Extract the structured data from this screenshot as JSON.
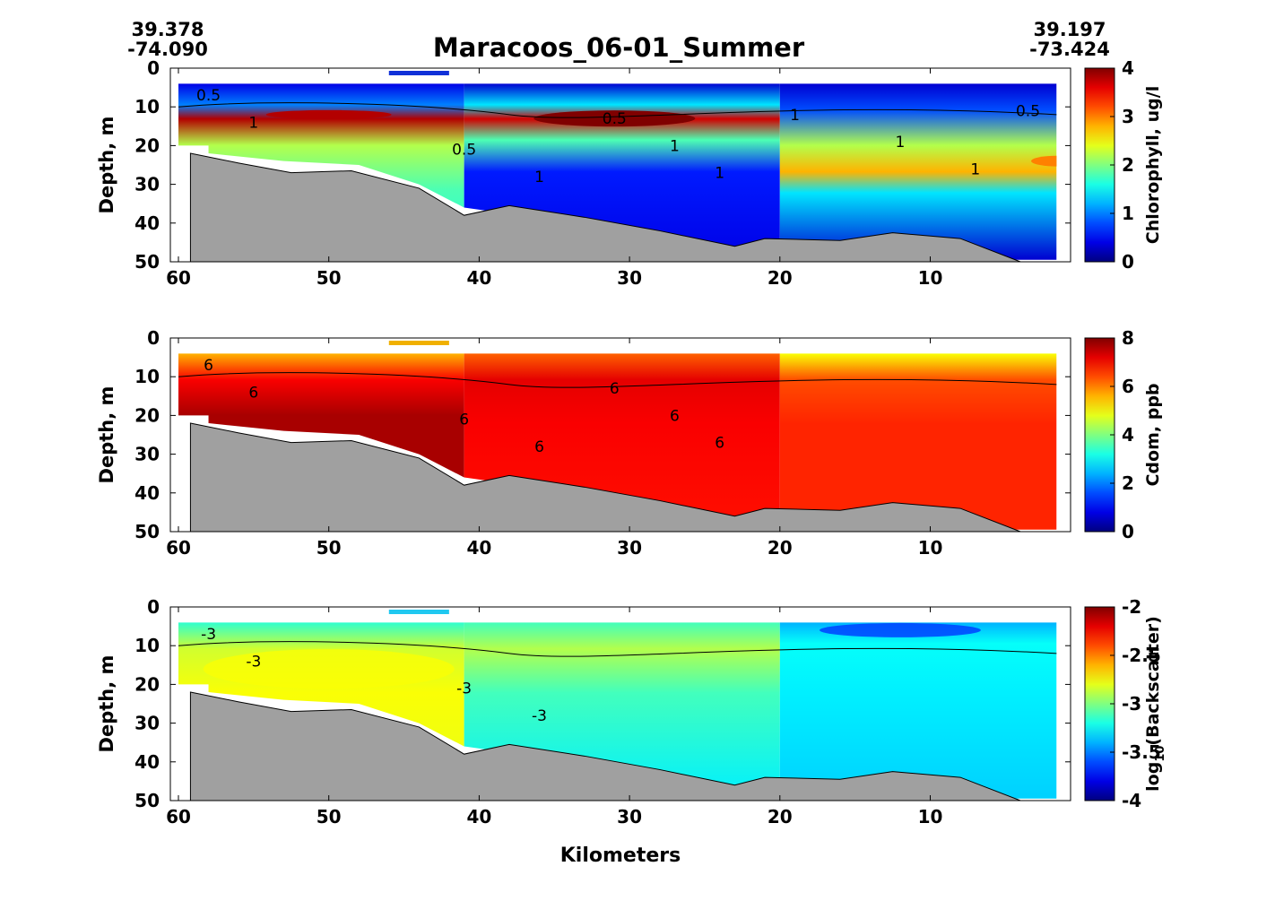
{
  "figure": {
    "title": "Maracoos_06-01_Summer",
    "start": {
      "lat": "39.378",
      "lon": "-74.090"
    },
    "end": {
      "lat": "39.197",
      "lon": "-73.424"
    }
  },
  "chart_data": [
    {
      "type": "heatmap",
      "subtype": "filled-contour cross-section",
      "title": "",
      "xlabel": "",
      "ylabel": "Depth, m",
      "xlim": [
        61,
        0
      ],
      "ylim": [
        0,
        50
      ],
      "x_ticks": [
        60,
        50,
        40,
        30,
        20,
        10
      ],
      "y_ticks": [
        0,
        10,
        20,
        30,
        40,
        50
      ],
      "colorbar": {
        "label": "Chlorophyll, ug/l",
        "range": [
          0,
          4
        ],
        "ticks": [
          "0",
          "1",
          "2",
          "3",
          "4"
        ],
        "colormap": "jet"
      },
      "contour_labels": [
        "0.5",
        "1",
        "0.5",
        "1",
        "0.5",
        "1",
        "1",
        "1",
        "1",
        "1",
        "0.5"
      ],
      "seafloor_depth": {
        "km": [
          59.2,
          56,
          52.5,
          48.5,
          44,
          41,
          38,
          33,
          28,
          23,
          21,
          16,
          12.5,
          8,
          4
        ],
        "depth_m": [
          22,
          24.5,
          27,
          26.5,
          31,
          38,
          35.5,
          38.5,
          42,
          46,
          44,
          44.5,
          42.5,
          44,
          50
        ]
      },
      "marker_color": "#1030d8"
    },
    {
      "type": "heatmap",
      "subtype": "filled-contour cross-section",
      "title": "",
      "xlabel": "",
      "ylabel": "Depth, m",
      "xlim": [
        61,
        0
      ],
      "ylim": [
        0,
        50
      ],
      "x_ticks": [
        60,
        50,
        40,
        30,
        20,
        10
      ],
      "y_ticks": [
        0,
        10,
        20,
        30,
        40,
        50
      ],
      "colorbar": {
        "label": "Cdom, ppb",
        "range": [
          0,
          8
        ],
        "ticks": [
          "0",
          "2",
          "4",
          "6",
          "8"
        ],
        "colormap": "jet"
      },
      "contour_labels": [
        "6",
        "6",
        "6",
        "6",
        "6",
        "6",
        "6"
      ],
      "seafloor_depth": {
        "km": [
          59.2,
          56,
          52.5,
          48.5,
          44,
          41,
          38,
          33,
          28,
          23,
          21,
          16,
          12.5,
          8,
          4
        ],
        "depth_m": [
          22,
          24.5,
          27,
          26.5,
          31,
          38,
          35.5,
          38.5,
          42,
          46,
          44,
          44.5,
          42.5,
          44,
          50
        ]
      },
      "marker_color": "#f0b000"
    },
    {
      "type": "heatmap",
      "subtype": "filled-contour cross-section",
      "title": "",
      "xlabel": "Kilometers",
      "ylabel": "Depth, m",
      "xlim": [
        61,
        0
      ],
      "ylim": [
        0,
        50
      ],
      "x_ticks": [
        60,
        50,
        40,
        30,
        20,
        10
      ],
      "y_ticks": [
        0,
        10,
        20,
        30,
        40,
        50
      ],
      "colorbar": {
        "label": "log",
        "label_sub": "10",
        "label_tail": "(Backscatter)",
        "range": [
          -4,
          -2
        ],
        "ticks": [
          "-4",
          "-3.5",
          "-3",
          "-2.5",
          "-2"
        ],
        "colormap": "jet"
      },
      "contour_labels": [
        "-3",
        "-3",
        "-3",
        "-3"
      ],
      "seafloor_depth": {
        "km": [
          59.2,
          56,
          52.5,
          48.5,
          44,
          41,
          38,
          33,
          28,
          23,
          21,
          16,
          12.5,
          8,
          4
        ],
        "depth_m": [
          22,
          24.5,
          27,
          26.5,
          31,
          38,
          35.5,
          38.5,
          42,
          46,
          44,
          44.5,
          42.5,
          44,
          50
        ]
      },
      "marker_color": "#20c8f0"
    }
  ]
}
